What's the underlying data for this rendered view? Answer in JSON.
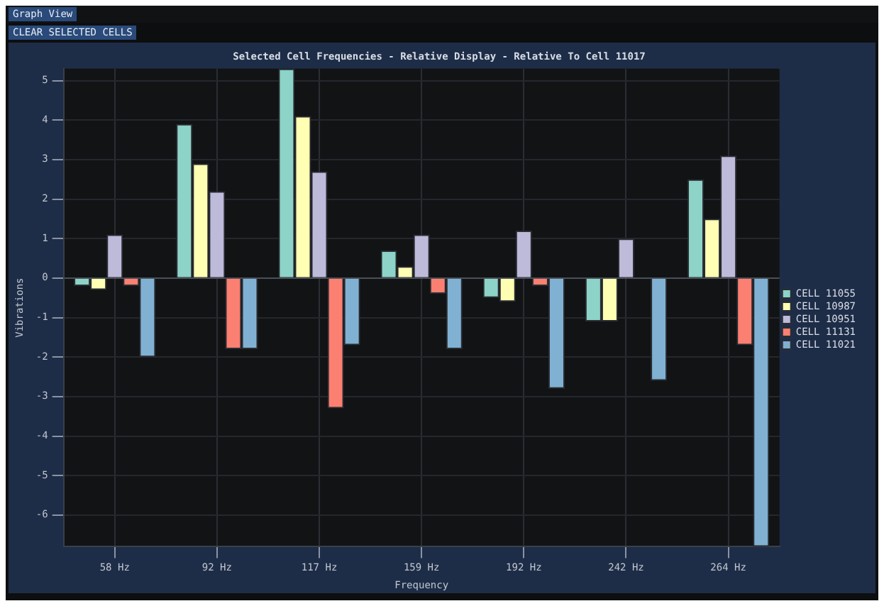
{
  "chart_data": {
    "type": "bar",
    "title": "Selected Cell Frequencies - Relative Display - Relative To Cell 11017",
    "xlabel": "Frequency",
    "ylabel": "Vibrations",
    "annotations": [
      "Graph View",
      "CLEAR SELECTED CELLS"
    ],
    "categories": [
      "58 Hz",
      "92 Hz",
      "117 Hz",
      "159 Hz",
      "192 Hz",
      "242 Hz",
      "264 Hz"
    ],
    "series": [
      {
        "name": "CELL 11055",
        "color": "#8dd3c7",
        "values": [
          -0.2,
          3.9,
          5.3,
          0.7,
          -0.5,
          -1.1,
          2.5
        ]
      },
      {
        "name": "CELL 10987",
        "color": "#ffffb3",
        "values": [
          -0.3,
          2.9,
          4.1,
          0.3,
          -0.6,
          -1.1,
          1.5
        ]
      },
      {
        "name": "CELL 10951",
        "color": "#bebada",
        "values": [
          1.1,
          2.2,
          2.7,
          1.1,
          1.2,
          1.0,
          3.1
        ]
      },
      {
        "name": "CELL 11131",
        "color": "#fb8072",
        "values": [
          -0.2,
          -1.8,
          -3.3,
          -0.4,
          -0.2,
          null,
          -1.7
        ]
      },
      {
        "name": "CELL 11021",
        "color": "#80b1d3",
        "values": [
          -2.0,
          -1.8,
          -1.7,
          -1.8,
          -2.8,
          -2.6,
          -6.8
        ]
      }
    ],
    "ylim": [
      -6.8,
      5.3
    ],
    "yticks": [
      -6,
      -5,
      -4,
      -3,
      -2,
      -1,
      0,
      1,
      2,
      3,
      4,
      5
    ],
    "grid": true,
    "legend": "right"
  }
}
